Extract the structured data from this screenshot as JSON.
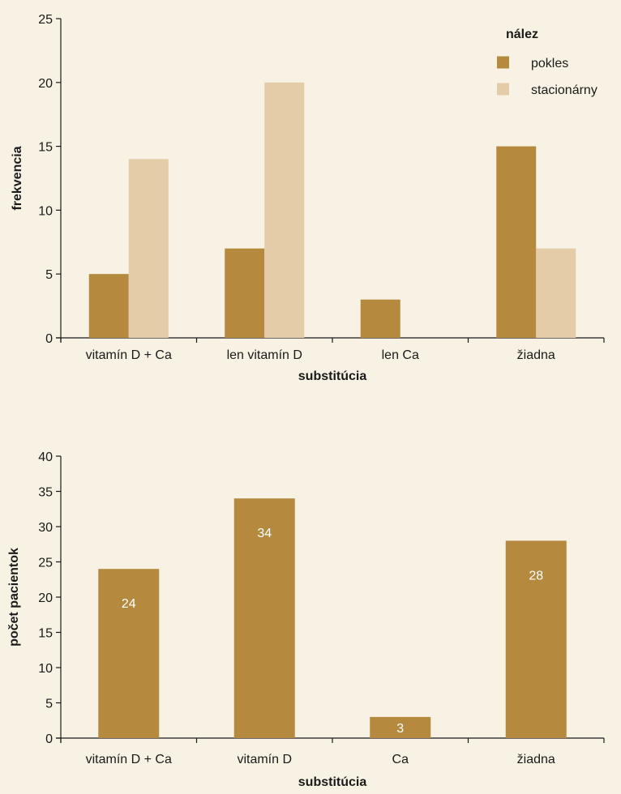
{
  "chart_data": [
    {
      "type": "bar",
      "categories": [
        "vitamín D + Ca",
        "len vitamín D",
        "len Ca",
        "žiadna"
      ],
      "series": [
        {
          "name": "pokles",
          "values": [
            5,
            7,
            3,
            15
          ],
          "color": "#b5893e"
        },
        {
          "name": "stacionárny",
          "values": [
            14,
            20,
            0,
            7
          ],
          "color": "#e4cca8"
        }
      ],
      "xlabel": "substitúcia",
      "ylabel": "frekvencia",
      "ylim": [
        0,
        25
      ],
      "yticks": [
        0,
        5,
        10,
        15,
        20,
        25
      ],
      "legend": {
        "title": "nález",
        "position": "top-right"
      },
      "grid": false
    },
    {
      "type": "bar",
      "categories": [
        "vitamín D + Ca",
        "vitamín D",
        "Ca",
        "žiadna"
      ],
      "series": [
        {
          "values": [
            24,
            34,
            3,
            28
          ],
          "color": "#b5893e"
        }
      ],
      "data_labels": [
        "24",
        "34",
        "3",
        "28"
      ],
      "xlabel": "substitúcia",
      "ylabel": "počet pacientok",
      "ylim": [
        0,
        40
      ],
      "yticks": [
        0,
        5,
        10,
        15,
        20,
        25,
        30,
        35,
        40
      ],
      "grid": false
    }
  ],
  "colors": {
    "axis": "#1a1a1a",
    "background": "#f7f2e4",
    "label_inside": "#ffffff"
  }
}
